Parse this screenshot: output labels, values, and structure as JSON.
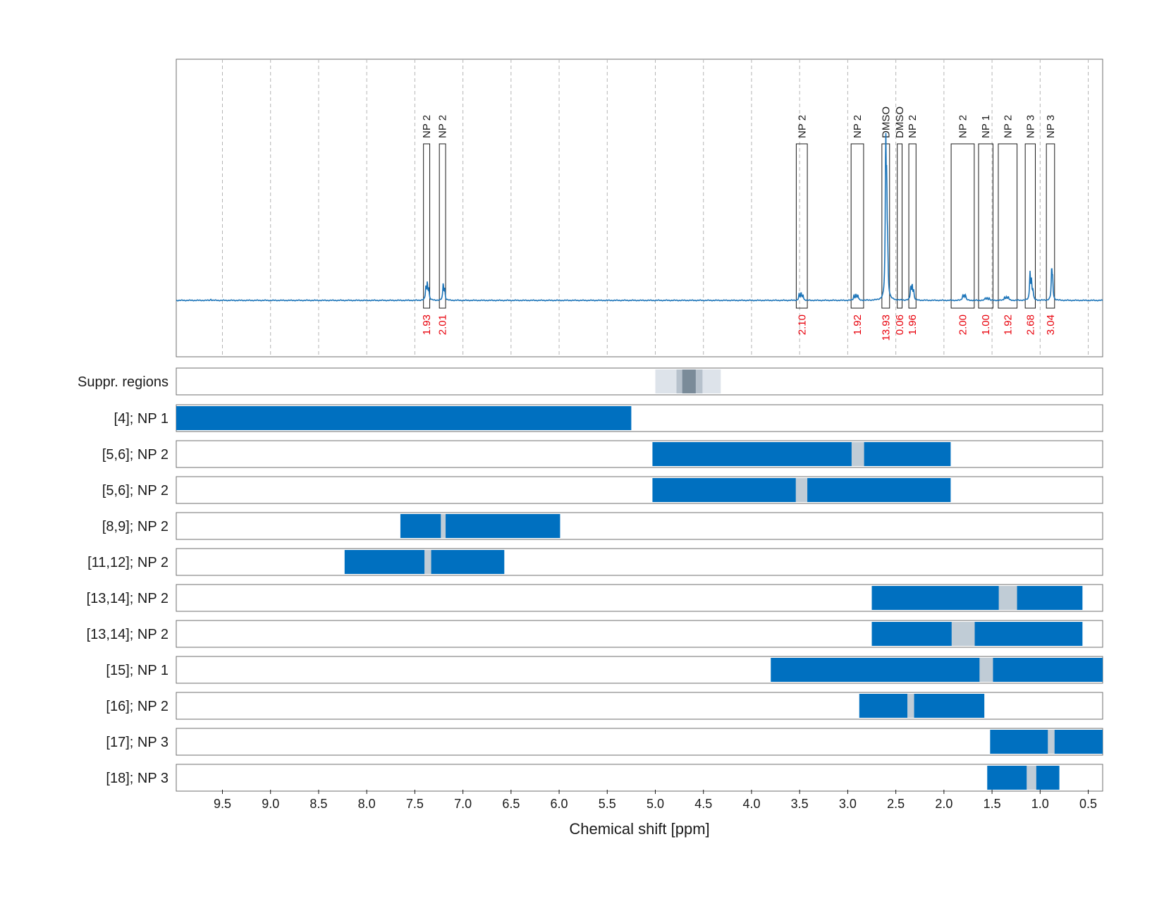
{
  "chart_data": {
    "type": "line",
    "xlabel": "Chemical shift [ppm]",
    "xlim": [
      9.98,
      0.35
    ],
    "x_reversed": true,
    "x_ticks": [
      {
        "v": 9.5,
        "label": "9.5"
      },
      {
        "v": 9.0,
        "label": "9.0"
      },
      {
        "v": 8.5,
        "label": "8.5"
      },
      {
        "v": 8.0,
        "label": "8.0"
      },
      {
        "v": 7.5,
        "label": "7.5"
      },
      {
        "v": 7.0,
        "label": "7.0"
      },
      {
        "v": 6.5,
        "label": "6.5"
      },
      {
        "v": 6.0,
        "label": "6.0"
      },
      {
        "v": 5.5,
        "label": "5.5"
      },
      {
        "v": 5.0,
        "label": "5.0"
      },
      {
        "v": 4.5,
        "label": "4.5"
      },
      {
        "v": 4.0,
        "label": "4.0"
      },
      {
        "v": 3.5,
        "label": "3.5"
      },
      {
        "v": 3.0,
        "label": "3.0"
      },
      {
        "v": 2.5,
        "label": "2.5"
      },
      {
        "v": 2.0,
        "label": "2.0"
      },
      {
        "v": 1.5,
        "label": "1.5"
      },
      {
        "v": 1.0,
        "label": "1.0"
      },
      {
        "v": 0.5,
        "label": "0.5"
      }
    ],
    "grid": true,
    "spectrum_color": "#1a73b8",
    "integral_color": "#e8000b",
    "peaks": [
      {
        "x": 7.385,
        "h": 0.07
      },
      {
        "x": 7.37,
        "h": 0.09
      },
      {
        "x": 7.355,
        "h": 0.06
      },
      {
        "x": 7.205,
        "h": 0.09
      },
      {
        "x": 7.19,
        "h": 0.06
      },
      {
        "x": 3.505,
        "h": 0.035
      },
      {
        "x": 3.485,
        "h": 0.04
      },
      {
        "x": 3.465,
        "h": 0.03
      },
      {
        "x": 2.935,
        "h": 0.028
      },
      {
        "x": 2.915,
        "h": 0.032
      },
      {
        "x": 2.895,
        "h": 0.028
      },
      {
        "x": 2.605,
        "h": 0.8
      },
      {
        "x": 2.595,
        "h": 0.5
      },
      {
        "x": 2.585,
        "h": 0.2
      },
      {
        "x": 2.345,
        "h": 0.07
      },
      {
        "x": 2.33,
        "h": 0.08
      },
      {
        "x": 2.315,
        "h": 0.05
      },
      {
        "x": 1.805,
        "h": 0.024
      },
      {
        "x": 1.79,
        "h": 0.028
      },
      {
        "x": 1.775,
        "h": 0.024
      },
      {
        "x": 1.57,
        "h": 0.012
      },
      {
        "x": 1.55,
        "h": 0.014
      },
      {
        "x": 1.53,
        "h": 0.012
      },
      {
        "x": 1.37,
        "h": 0.018
      },
      {
        "x": 1.35,
        "h": 0.02
      },
      {
        "x": 1.33,
        "h": 0.018
      },
      {
        "x": 1.105,
        "h": 0.15
      },
      {
        "x": 1.09,
        "h": 0.1
      },
      {
        "x": 1.075,
        "h": 0.05
      },
      {
        "x": 0.88,
        "h": 0.16
      },
      {
        "x": 0.87,
        "h": 0.1
      },
      {
        "x": 9.62,
        "h": 0.006
      }
    ],
    "integrals": [
      {
        "label": "NP 2",
        "from": 7.41,
        "to": 7.345,
        "value": "1.93"
      },
      {
        "label": "NP 2",
        "from": 7.245,
        "to": 7.18,
        "value": "2.01"
      },
      {
        "label": "NP 2",
        "from": 3.535,
        "to": 3.42,
        "value": "2.10"
      },
      {
        "label": "NP 2",
        "from": 2.965,
        "to": 2.835,
        "value": "1.92"
      },
      {
        "label": "DMSO",
        "from": 2.645,
        "to": 2.565,
        "value": "13.93"
      },
      {
        "label": "DMSO",
        "from": 2.485,
        "to": 2.435,
        "value": "0.06"
      },
      {
        "label": "NP 2",
        "from": 2.365,
        "to": 2.29,
        "value": "1.96"
      },
      {
        "label": "NP 2",
        "from": 1.925,
        "to": 1.685,
        "value": "2.00"
      },
      {
        "label": "NP 1",
        "from": 1.64,
        "to": 1.49,
        "value": "1.00"
      },
      {
        "label": "NP 2",
        "from": 1.435,
        "to": 1.24,
        "value": "1.92"
      },
      {
        "label": "NP 3",
        "from": 1.155,
        "to": 1.05,
        "value": "2.68"
      },
      {
        "label": "NP 3",
        "from": 0.935,
        "to": 0.85,
        "value": "3.04"
      }
    ],
    "suppression": {
      "label": "Suppr. regions",
      "segments": [
        {
          "from": 5.0,
          "to": 4.32,
          "shade": "#dde3ea"
        },
        {
          "from": 4.78,
          "to": 4.51,
          "shade": "#b6c1cc"
        },
        {
          "from": 4.72,
          "to": 4.58,
          "shade": "#7a8b99"
        }
      ]
    },
    "range_rows": [
      {
        "label": "[4]; NP 1",
        "from": 9.98,
        "to": 5.25,
        "gaps": []
      },
      {
        "label": "[5,6]; NP 2",
        "from": 5.03,
        "to": 1.93,
        "gaps": [
          {
            "from": 2.96,
            "to": 2.83
          }
        ]
      },
      {
        "label": "[5,6]; NP 2",
        "from": 5.03,
        "to": 1.93,
        "gaps": [
          {
            "from": 3.54,
            "to": 3.42
          }
        ]
      },
      {
        "label": "[8,9]; NP 2",
        "from": 7.65,
        "to": 5.99,
        "gaps": [
          {
            "from": 7.23,
            "to": 7.18
          }
        ]
      },
      {
        "label": "[11,12]; NP 2",
        "from": 8.23,
        "to": 6.57,
        "gaps": [
          {
            "from": 7.4,
            "to": 7.33
          }
        ]
      },
      {
        "label": "[13,14]; NP 2",
        "from": 2.75,
        "to": 0.56,
        "gaps": [
          {
            "from": 1.43,
            "to": 1.24
          }
        ]
      },
      {
        "label": "[13,14]; NP 2",
        "from": 2.75,
        "to": 0.56,
        "gaps": [
          {
            "from": 1.92,
            "to": 1.68
          }
        ]
      },
      {
        "label": "[15]; NP 1",
        "from": 3.8,
        "to": 0.35,
        "gaps": [
          {
            "from": 1.63,
            "to": 1.49
          }
        ]
      },
      {
        "label": "[16]; NP 2",
        "from": 2.88,
        "to": 1.58,
        "gaps": [
          {
            "from": 2.38,
            "to": 2.31
          }
        ]
      },
      {
        "label": "[17]; NP 3",
        "from": 1.52,
        "to": 0.35,
        "gaps": [
          {
            "from": 0.92,
            "to": 0.85
          }
        ]
      },
      {
        "label": "[18]; NP 3",
        "from": 1.55,
        "to": 0.8,
        "gaps": [
          {
            "from": 1.14,
            "to": 1.04
          }
        ]
      }
    ],
    "range_color": "#0070c0",
    "gap_color": "#c0ccd6"
  }
}
